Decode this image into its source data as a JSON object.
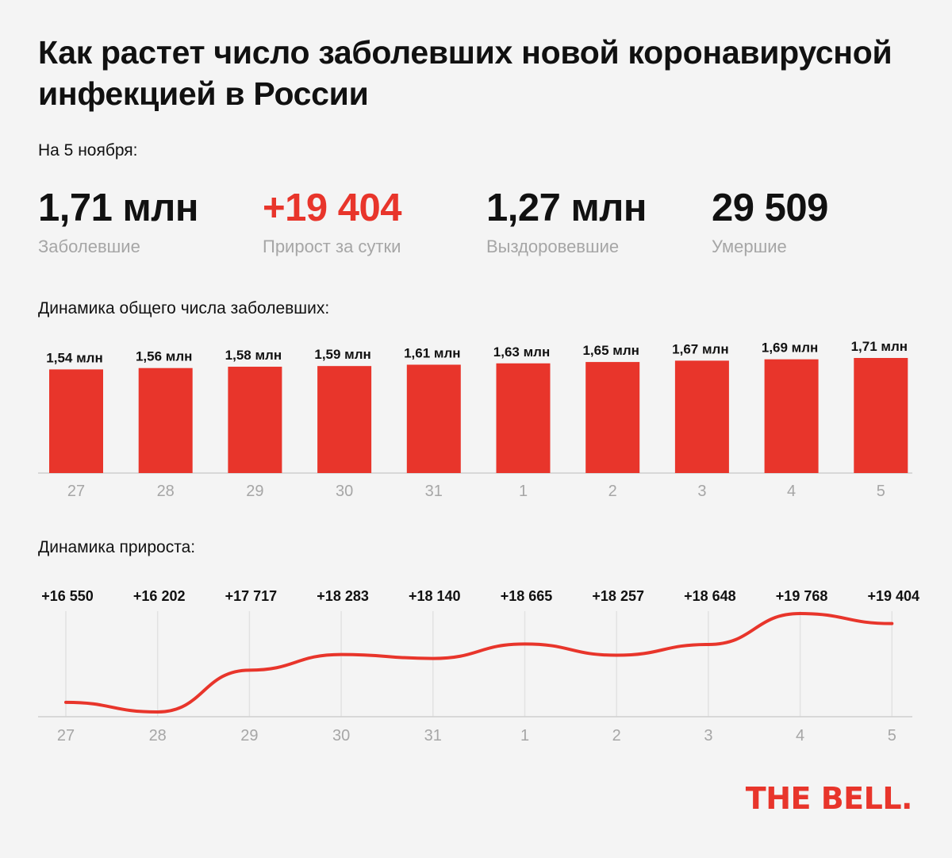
{
  "title": "Как растет число заболевших новой коронавирусной инфекцией в России",
  "date_label": "На 5 ноября:",
  "stats": [
    {
      "value": "1,71 млн",
      "label": "Заболевшие"
    },
    {
      "value": "+19 404",
      "label": "Прирост за сутки"
    },
    {
      "value": "1,27 млн",
      "label": "Выздоровевшие"
    },
    {
      "value": "29 509",
      "label": "Умершие"
    }
  ],
  "colors": {
    "accent": "#e8352b",
    "axis_label": "#a6a6a6",
    "background": "#f4f4f4"
  },
  "logo": "THE BELL.",
  "chart_data": [
    {
      "type": "bar",
      "title": "Динамика общего числа заболевших:",
      "categories": [
        "27",
        "28",
        "29",
        "30",
        "31",
        "1",
        "2",
        "3",
        "4",
        "5"
      ],
      "values": [
        1.54,
        1.56,
        1.58,
        1.59,
        1.61,
        1.63,
        1.65,
        1.67,
        1.69,
        1.71
      ],
      "value_labels": [
        "1,54 млн",
        "1,56 млн",
        "1,58 млн",
        "1,59 млн",
        "1,61 млн",
        "1,63 млн",
        "1,65 млн",
        "1,67 млн",
        "1,69 млн",
        "1,71 млн"
      ],
      "unit": "млн",
      "grid": false,
      "legend": "none"
    },
    {
      "type": "line",
      "title": "Динамика прироста:",
      "categories": [
        "27",
        "28",
        "29",
        "30",
        "31",
        "1",
        "2",
        "3",
        "4",
        "5"
      ],
      "values": [
        16550,
        16202,
        17717,
        18283,
        18140,
        18665,
        18257,
        18648,
        19768,
        19404
      ],
      "value_labels": [
        "+16 550",
        "+16 202",
        "+17 717",
        "+18 283",
        "+18 140",
        "+18 665",
        "+18 257",
        "+18 648",
        "+19 768",
        "+19 404"
      ],
      "grid": true,
      "legend": "none"
    }
  ]
}
